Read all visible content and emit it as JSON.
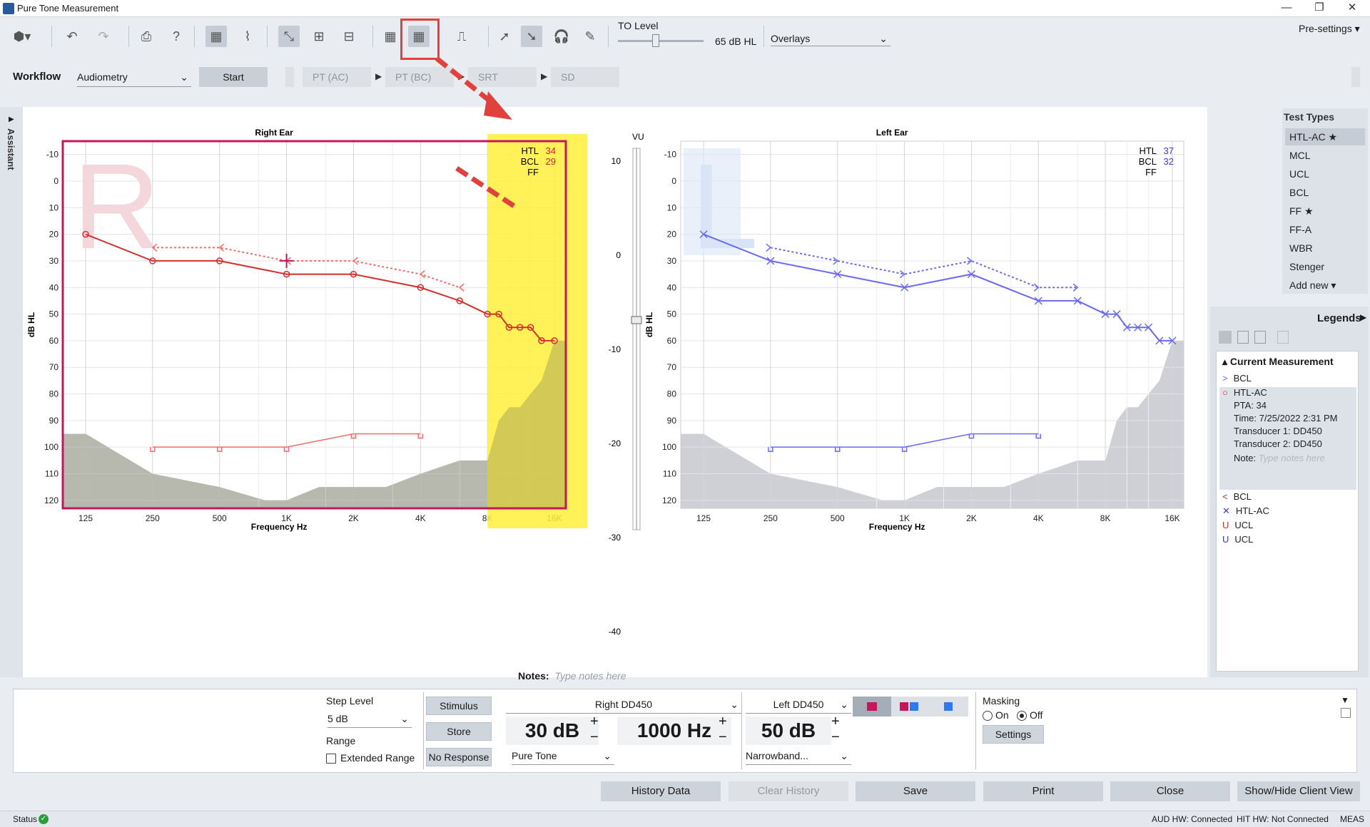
{
  "window": {
    "title": "Pure Tone Measurement",
    "min": "—",
    "max": "❐",
    "close": "✕"
  },
  "toolbar": {
    "to_level_label": "TO Level",
    "to_level_value": "65 dB HL",
    "overlays": "Overlays",
    "presettings": "Pre-settings"
  },
  "workflow": {
    "label": "Workflow",
    "mode": "Audiometry",
    "start": "Start",
    "steps": [
      "PT (AC)",
      "PT (BC)",
      "SRT",
      "SD"
    ]
  },
  "assistant": "Assistant",
  "right_ear": {
    "title": "Right Ear",
    "htl_label": "HTL",
    "htl": "34",
    "bcl_label": "BCL",
    "bcl": "29",
    "ff_label": "FF",
    "big_letter": "R",
    "vu_label": "VU"
  },
  "left_ear": {
    "title": "Left Ear",
    "htl_label": "HTL",
    "htl": "37",
    "bcl_label": "BCL",
    "bcl": "32",
    "ff_label": "FF",
    "big_letter": "L"
  },
  "axis": {
    "ylabel": "dB HL",
    "xlabel": "Frequency Hz",
    "y_ticks": [
      "-10",
      "0",
      "10",
      "20",
      "30",
      "40",
      "50",
      "60",
      "70",
      "80",
      "90",
      "100",
      "110",
      "120"
    ],
    "x_ticks": [
      "125",
      "250",
      "500",
      "1K",
      "2K",
      "4K",
      "8K",
      "16K"
    ],
    "vu_ticks": [
      "10",
      "0",
      "-10",
      "-20",
      "-30",
      "-40"
    ]
  },
  "chart_data": [
    {
      "type": "line",
      "title": "Right Ear",
      "xlabel": "Frequency Hz",
      "ylabel": "dB HL",
      "ylim": [
        -15,
        123
      ],
      "x_scale": "log",
      "series": [
        {
          "name": "HTL-AC",
          "color": "#d32f2f",
          "x": [
            125,
            250,
            500,
            1000,
            2000,
            4000,
            6000,
            8000,
            9000,
            10000,
            11200,
            12500,
            14000,
            16000
          ],
          "y": [
            20,
            30,
            30,
            35,
            35,
            40,
            45,
            50,
            50,
            55,
            55,
            55,
            60,
            60
          ]
        },
        {
          "name": "BCL",
          "color": "#ef6c6c",
          "x": [
            250,
            500,
            1000,
            2000,
            4000,
            6000
          ],
          "y": [
            25,
            25,
            30,
            30,
            35,
            40
          ]
        },
        {
          "name": "UCL",
          "color": "#ef6c6c",
          "x": [
            250,
            500,
            1000,
            2000,
            4000
          ],
          "y": [
            100,
            100,
            100,
            95,
            95
          ]
        }
      ]
    },
    {
      "type": "line",
      "title": "Left Ear",
      "xlabel": "Frequency Hz",
      "ylabel": "dB HL",
      "ylim": [
        -15,
        123
      ],
      "x_scale": "log",
      "series": [
        {
          "name": "HTL-AC",
          "color": "#6a6af0",
          "x": [
            125,
            250,
            500,
            1000,
            2000,
            4000,
            6000,
            8000,
            9000,
            10000,
            11200,
            12500,
            14000,
            16000
          ],
          "y": [
            20,
            30,
            35,
            40,
            35,
            45,
            45,
            50,
            50,
            55,
            55,
            55,
            60,
            60
          ]
        },
        {
          "name": "BCL",
          "color": "#6a6af0",
          "x": [
            250,
            500,
            1000,
            2000,
            4000,
            6000
          ],
          "y": [
            25,
            30,
            35,
            30,
            40,
            40
          ]
        },
        {
          "name": "UCL",
          "color": "#6a6af0",
          "x": [
            250,
            500,
            1000,
            2000,
            4000
          ],
          "y": [
            100,
            100,
            100,
            95,
            95
          ]
        }
      ]
    }
  ],
  "test_types": [
    "HTL-AC ★",
    "MCL",
    "UCL",
    "BCL",
    "FF ★",
    "FF-A",
    "WBR",
    "Stenger",
    "Add new ▾"
  ],
  "legends": {
    "title": "Legends",
    "current": "Current Measurement",
    "items": [
      {
        "sym": ">",
        "label": "BCL",
        "color": "#6a6af0"
      },
      {
        "sym": "○",
        "label": "HTL-AC",
        "color": "#d32f2f"
      }
    ],
    "pta": "PTA: 34",
    "time": "Time: 7/25/2022 2:31 PM",
    "t1": "Transducer 1: DD450",
    "t2": "Transducer 2: DD450",
    "note_label": "Note:",
    "note_placeholder": "Type notes here",
    "more": [
      {
        "sym": "<",
        "label": "BCL",
        "color": "#d32f2f"
      },
      {
        "sym": "✕",
        "label": "HTL-AC",
        "color": "#3a3ad0"
      },
      {
        "sym": "U",
        "label": "UCL",
        "color": "#d32f2f"
      },
      {
        "sym": "U",
        "label": "UCL",
        "color": "#3a3ad0"
      }
    ]
  },
  "notes": {
    "label": "Notes:",
    "placeholder": "Type notes here"
  },
  "controls": {
    "step_level_label": "Step Level",
    "step_level": "5 dB",
    "range_label": "Range",
    "extended_range": "Extended Range",
    "stimulus": "Stimulus",
    "store": "Store",
    "no_response": "No Response",
    "right_transducer": "Right DD450",
    "left_transducer": "Left DD450",
    "level": "30 dB",
    "freq": "1000 Hz",
    "mask_level": "50 dB",
    "signal": "Pure Tone",
    "noise": "Narrowband...",
    "masking_label": "Masking",
    "on": "On",
    "off": "Off",
    "settings": "Settings"
  },
  "actions": [
    "History Data",
    "Clear History",
    "Save",
    "Print",
    "Close",
    "Show/Hide Client View"
  ],
  "status": {
    "label": "Status",
    "aud": "AUD HW: Connected",
    "hit": "HIT HW: Not Connected",
    "meas": "MEAS"
  }
}
